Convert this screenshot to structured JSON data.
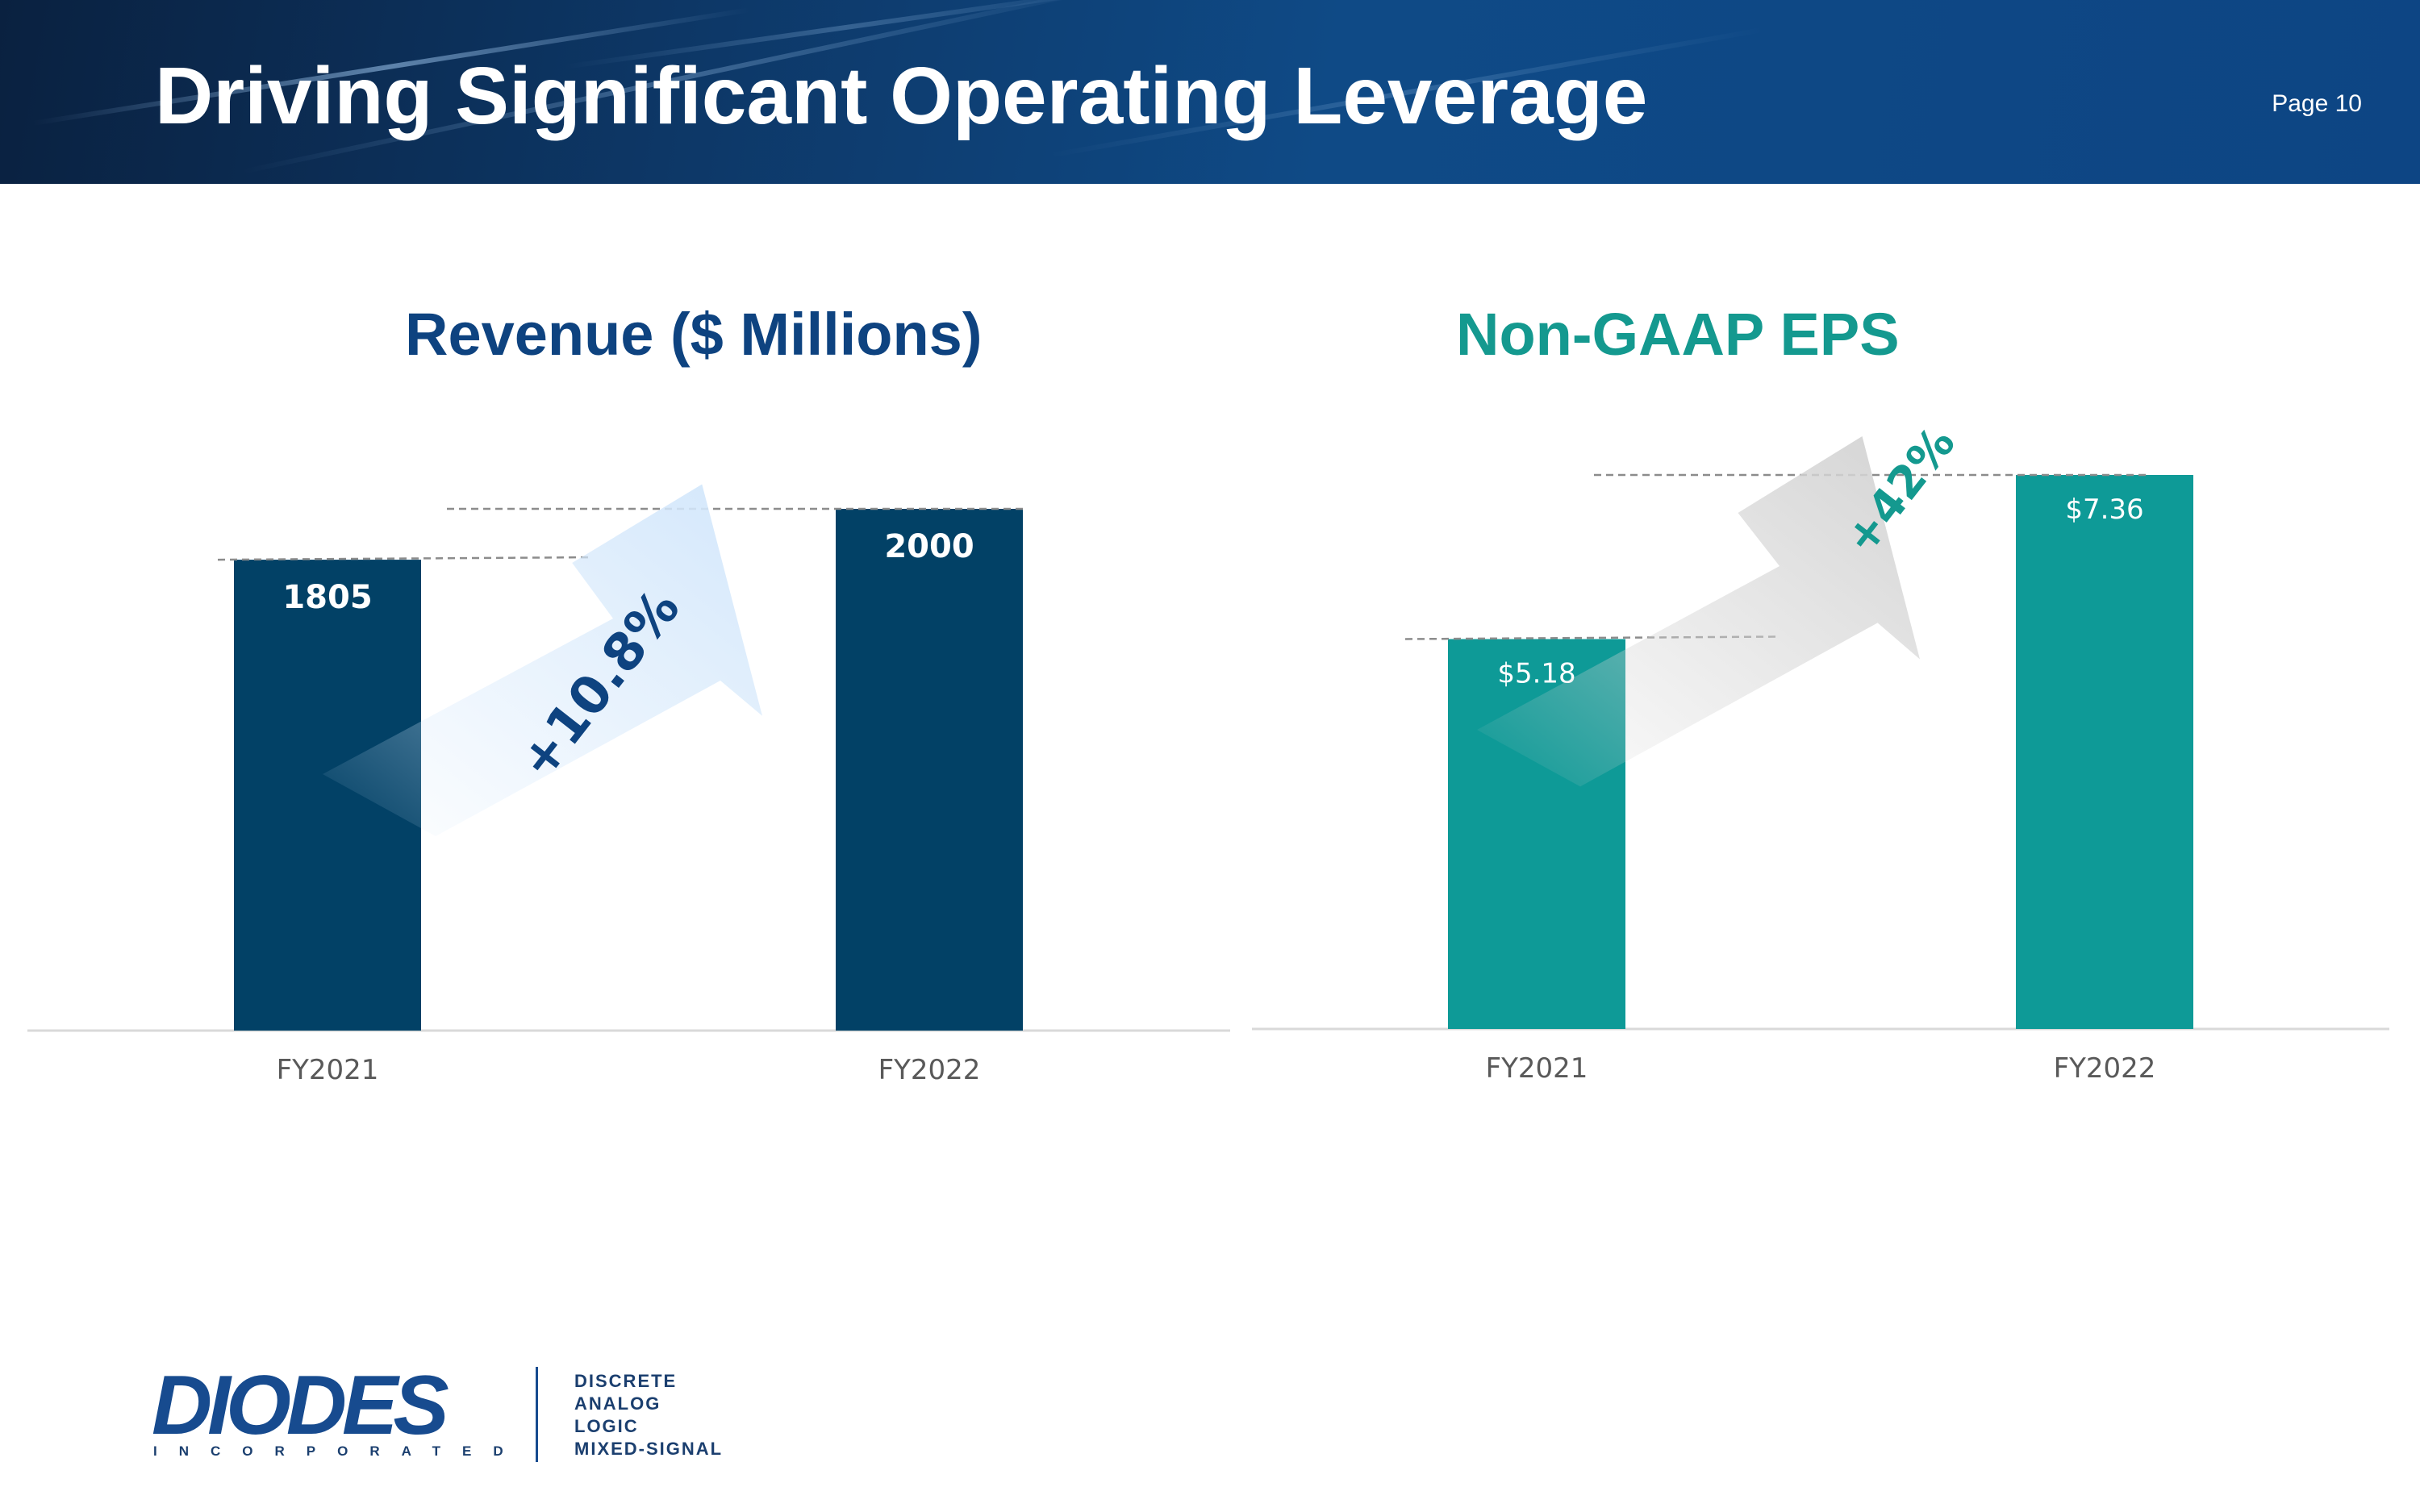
{
  "header": {
    "title": "Driving Significant Operating Leverage",
    "page_word": "Page",
    "page_number": "10"
  },
  "chart_data": [
    {
      "type": "bar",
      "title": "Revenue ($ Millions)",
      "categories": [
        "FY2021",
        "FY2022"
      ],
      "values": [
        1805,
        2000
      ],
      "value_labels": [
        "1805",
        "2000"
      ],
      "growth_label": "+10.8%",
      "xlabel": "",
      "ylabel": "",
      "grid": false,
      "legend": "none",
      "colors": {
        "bar": "#024166",
        "title": "#0e4380",
        "growth": "#0e4380",
        "arrow": "#d3e7fb"
      }
    },
    {
      "type": "bar",
      "title": "Non-GAAP EPS",
      "categories": [
        "FY2021",
        "FY2022"
      ],
      "values": [
        5.18,
        7.36
      ],
      "value_labels": [
        "$5.18",
        "$7.36"
      ],
      "growth_label": "+42%",
      "xlabel": "",
      "ylabel": "",
      "grid": false,
      "legend": "none",
      "colors": {
        "bar": "#0e9a97",
        "title": "#14998f",
        "growth": "#14998f",
        "arrow": "#d4d4d4"
      }
    }
  ],
  "logo": {
    "wordmark": "DIODES",
    "subtitle": "INCORPORATED",
    "lines": [
      "DISCRETE",
      "ANALOG",
      "LOGIC",
      "MIXED-SIGNAL"
    ]
  }
}
